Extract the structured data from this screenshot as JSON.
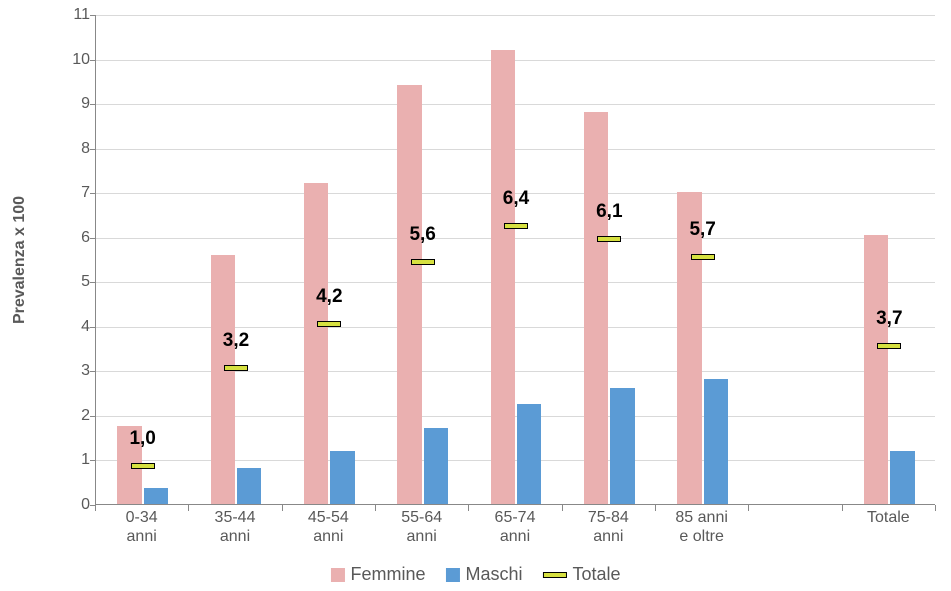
{
  "chart": {
    "type": "bar",
    "y_axis_title": "Prevalenza x 100",
    "ylim": [
      0,
      11
    ],
    "ytick_step": 1,
    "y_ticks": [
      0,
      1,
      2,
      3,
      4,
      5,
      6,
      7,
      8,
      9,
      10,
      11
    ],
    "background_color": "#ffffff",
    "grid_color": "#d9d9d9",
    "axis_color": "#888888",
    "tick_label_color": "#595959",
    "tick_label_fontsize": 16,
    "totale_label_fontsize": 19,
    "bar_width_ratio": 0.26,
    "categories": [
      {
        "label_line1": "0-34",
        "label_line2": "anni"
      },
      {
        "label_line1": "35-44",
        "label_line2": "anni"
      },
      {
        "label_line1": "45-54",
        "label_line2": "anni"
      },
      {
        "label_line1": "55-64",
        "label_line2": "anni"
      },
      {
        "label_line1": "65-74",
        "label_line2": "anni"
      },
      {
        "label_line1": "75-84",
        "label_line2": "anni"
      },
      {
        "label_line1": "85 anni",
        "label_line2": "e oltre"
      },
      {
        "label_line1": "Totale",
        "label_line2": ""
      }
    ],
    "group_gap_after": [
      0,
      0,
      0,
      0,
      0,
      0,
      1,
      0
    ],
    "series": [
      {
        "name": "Femmine",
        "color": "#eab0b0",
        "values": [
          1.75,
          5.6,
          7.2,
          9.4,
          10.2,
          8.8,
          7.0,
          6.05
        ]
      },
      {
        "name": "Maschi",
        "color": "#5b9bd5",
        "values": [
          0.35,
          0.8,
          1.2,
          1.7,
          2.25,
          2.6,
          2.8,
          1.2
        ]
      }
    ],
    "totale": {
      "name": "Totale",
      "marker_color": "#d6e040",
      "values": [
        1.0,
        3.2,
        4.2,
        5.6,
        6.4,
        6.1,
        5.7,
        3.7
      ],
      "labels": [
        "1,0",
        "3,2",
        "4,2",
        "5,6",
        "6,4",
        "6,1",
        "5,7",
        "3,7"
      ]
    },
    "legend": {
      "items": [
        {
          "label": "Femmine",
          "type": "swatch",
          "color": "#eab0b0"
        },
        {
          "label": "Maschi",
          "type": "swatch",
          "color": "#5b9bd5"
        },
        {
          "label": "Totale",
          "type": "dash",
          "color": "#d6e040"
        }
      ]
    }
  }
}
